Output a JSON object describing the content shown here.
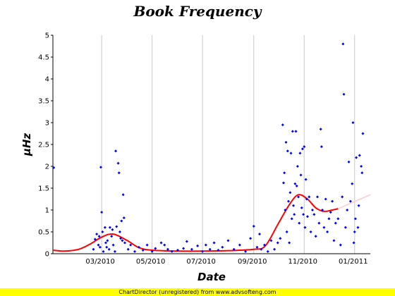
{
  "chart_data": {
    "type": "scatter",
    "title": "Book Frequency",
    "xlabel": "Date",
    "ylabel": "µHz",
    "x_ticks": [
      "03/2010",
      "05/2010",
      "07/2010",
      "09/2010",
      "11/2010",
      "01/2011"
    ],
    "xlim": [
      "2010-01-01",
      "2011-01-20"
    ],
    "y_ticks": [
      "0",
      "0.5",
      "1",
      "1.5",
      "2",
      "2.5",
      "3",
      "3.5",
      "4",
      "4.5",
      "5"
    ],
    "ylim": [
      0,
      5
    ],
    "grid": "vertical lines at x ticks",
    "series": [
      {
        "kind": "points",
        "color": "#0000ff",
        "points": [
          [
            "2010-01-02",
            1.97
          ],
          [
            "2010-02-19",
            0.1
          ],
          [
            "2010-02-21",
            0.33
          ],
          [
            "2010-02-23",
            0.45
          ],
          [
            "2010-02-25",
            0.2
          ],
          [
            "2010-02-26",
            0.4
          ],
          [
            "2010-02-27",
            0.15
          ],
          [
            "2010-02-28",
            1.98
          ],
          [
            "2010-03-01",
            0.95
          ],
          [
            "2010-03-02",
            0.5
          ],
          [
            "2010-03-03",
            0.05
          ],
          [
            "2010-03-05",
            0.6
          ],
          [
            "2010-03-06",
            0.25
          ],
          [
            "2010-03-07",
            0.15
          ],
          [
            "2010-03-08",
            0.3
          ],
          [
            "2010-03-10",
            0.1
          ],
          [
            "2010-03-11",
            0.6
          ],
          [
            "2010-03-13",
            0.4
          ],
          [
            "2010-03-14",
            0.55
          ],
          [
            "2010-03-15",
            0.2
          ],
          [
            "2010-03-17",
            0.05
          ],
          [
            "2010-03-18",
            2.35
          ],
          [
            "2010-03-19",
            0.62
          ],
          [
            "2010-03-21",
            2.07
          ],
          [
            "2010-03-22",
            1.85
          ],
          [
            "2010-03-23",
            0.5
          ],
          [
            "2010-03-24",
            0.35
          ],
          [
            "2010-03-25",
            0.75
          ],
          [
            "2010-03-26",
            0.3
          ],
          [
            "2010-03-27",
            1.35
          ],
          [
            "2010-03-28",
            0.82
          ],
          [
            "2010-03-29",
            0.25
          ],
          [
            "2010-04-02",
            0.1
          ],
          [
            "2010-04-05",
            0.2
          ],
          [
            "2010-04-10",
            0.05
          ],
          [
            "2010-04-15",
            0.15
          ],
          [
            "2010-04-20",
            0.08
          ],
          [
            "2010-04-25",
            0.2
          ],
          [
            "2010-05-01",
            0.05
          ],
          [
            "2010-05-05",
            0.12
          ],
          [
            "2010-05-12",
            0.25
          ],
          [
            "2010-05-16",
            0.2
          ],
          [
            "2010-05-20",
            0.1
          ],
          [
            "2010-05-25",
            0.05
          ],
          [
            "2010-06-01",
            0.08
          ],
          [
            "2010-06-08",
            0.12
          ],
          [
            "2010-06-12",
            0.28
          ],
          [
            "2010-06-18",
            0.1
          ],
          [
            "2010-06-25",
            0.18
          ],
          [
            "2010-07-01",
            0.05
          ],
          [
            "2010-07-05",
            0.2
          ],
          [
            "2010-07-10",
            0.1
          ],
          [
            "2010-07-15",
            0.25
          ],
          [
            "2010-07-20",
            0.08
          ],
          [
            "2010-07-25",
            0.15
          ],
          [
            "2010-08-01",
            0.3
          ],
          [
            "2010-08-08",
            0.1
          ],
          [
            "2010-08-15",
            0.2
          ],
          [
            "2010-08-22",
            0.05
          ],
          [
            "2010-08-28",
            0.35
          ],
          [
            "2010-09-01",
            0.63
          ],
          [
            "2010-09-05",
            0.15
          ],
          [
            "2010-09-08",
            0.45
          ],
          [
            "2010-09-10",
            0.1
          ],
          [
            "2010-09-14",
            0.2
          ],
          [
            "2010-09-18",
            0.05
          ],
          [
            "2010-09-22",
            0.3
          ],
          [
            "2010-09-26",
            0.1
          ],
          [
            "2010-09-30",
            0.25
          ],
          [
            "2010-10-03",
            0.35
          ],
          [
            "2010-10-06",
            2.95
          ],
          [
            "2010-10-07",
            1.62
          ],
          [
            "2010-10-08",
            1.85
          ],
          [
            "2010-10-09",
            1.0
          ],
          [
            "2010-10-10",
            2.55
          ],
          [
            "2010-10-11",
            0.5
          ],
          [
            "2010-10-12",
            2.35
          ],
          [
            "2010-10-13",
            1.2
          ],
          [
            "2010-10-14",
            0.25
          ],
          [
            "2010-10-15",
            1.4
          ],
          [
            "2010-10-16",
            2.3
          ],
          [
            "2010-10-17",
            0.8
          ],
          [
            "2010-10-18",
            2.8
          ],
          [
            "2010-10-19",
            1.1
          ],
          [
            "2010-10-20",
            0.9
          ],
          [
            "2010-10-21",
            1.6
          ],
          [
            "2010-10-22",
            2.8
          ],
          [
            "2010-10-23",
            1.55
          ],
          [
            "2010-10-24",
            2.0
          ],
          [
            "2010-10-25",
            1.3
          ],
          [
            "2010-10-26",
            0.7
          ],
          [
            "2010-10-27",
            2.3
          ],
          [
            "2010-10-28",
            1.8
          ],
          [
            "2010-10-29",
            1.05
          ],
          [
            "2010-10-30",
            2.4
          ],
          [
            "2010-10-31",
            0.9
          ],
          [
            "2010-11-01",
            2.45
          ],
          [
            "2010-11-02",
            0.6
          ],
          [
            "2010-11-03",
            1.7
          ],
          [
            "2010-11-04",
            1.25
          ],
          [
            "2010-11-05",
            0.85
          ],
          [
            "2010-11-07",
            1.3
          ],
          [
            "2010-11-09",
            0.5
          ],
          [
            "2010-11-11",
            1.0
          ],
          [
            "2010-11-13",
            0.9
          ],
          [
            "2010-11-15",
            0.4
          ],
          [
            "2010-11-17",
            1.3
          ],
          [
            "2010-11-19",
            0.7
          ],
          [
            "2010-11-21",
            2.85
          ],
          [
            "2010-11-22",
            2.45
          ],
          [
            "2010-11-23",
            1.0
          ],
          [
            "2010-11-25",
            0.6
          ],
          [
            "2010-11-27",
            1.25
          ],
          [
            "2010-11-29",
            0.5
          ],
          [
            "2010-12-01",
            0.8
          ],
          [
            "2010-12-03",
            0.95
          ],
          [
            "2010-12-05",
            1.2
          ],
          [
            "2010-12-07",
            0.3
          ],
          [
            "2010-12-09",
            0.7
          ],
          [
            "2010-12-12",
            0.8
          ],
          [
            "2010-12-15",
            0.2
          ],
          [
            "2010-12-17",
            1.3
          ],
          [
            "2010-12-18",
            4.8
          ],
          [
            "2010-12-19",
            3.65
          ],
          [
            "2010-12-21",
            0.6
          ],
          [
            "2010-12-23",
            1.0
          ],
          [
            "2010-12-25",
            2.1
          ],
          [
            "2010-12-27",
            1.2
          ],
          [
            "2010-12-29",
            1.6
          ],
          [
            "2010-12-30",
            3.0
          ],
          [
            "2010-12-31",
            0.25
          ],
          [
            "2011-01-01",
            0.5
          ],
          [
            "2011-01-02",
            0.8
          ],
          [
            "2011-01-03",
            2.2
          ],
          [
            "2011-01-05",
            0.6
          ],
          [
            "2011-01-06",
            1.1
          ],
          [
            "2011-01-07",
            2.25
          ],
          [
            "2011-01-09",
            2.0
          ],
          [
            "2011-01-10",
            1.85
          ],
          [
            "2011-01-11",
            2.75
          ]
        ]
      },
      {
        "kind": "smooth-line",
        "color": "#ff0000",
        "points": [
          [
            "2010-01-01",
            0.08
          ],
          [
            "2010-01-15",
            0.06
          ],
          [
            "2010-02-01",
            0.1
          ],
          [
            "2010-02-15",
            0.22
          ],
          [
            "2010-03-01",
            0.38
          ],
          [
            "2010-03-15",
            0.45
          ],
          [
            "2010-04-01",
            0.3
          ],
          [
            "2010-04-15",
            0.14
          ],
          [
            "2010-05-01",
            0.08
          ],
          [
            "2010-06-01",
            0.06
          ],
          [
            "2010-07-01",
            0.06
          ],
          [
            "2010-08-01",
            0.07
          ],
          [
            "2010-09-01",
            0.1
          ],
          [
            "2010-09-15",
            0.18
          ],
          [
            "2010-10-01",
            0.7
          ],
          [
            "2010-10-15",
            1.15
          ],
          [
            "2010-10-25",
            1.35
          ],
          [
            "2010-11-05",
            1.25
          ],
          [
            "2010-11-15",
            1.05
          ],
          [
            "2010-11-25",
            0.97
          ],
          [
            "2010-12-05",
            1.0
          ],
          [
            "2010-12-12",
            1.03
          ]
        ]
      },
      {
        "kind": "faded-line",
        "color": "#ffcccc",
        "points": [
          [
            "2010-12-12",
            1.03
          ],
          [
            "2011-01-20",
            1.35
          ]
        ]
      }
    ]
  },
  "footer": "ChartDirector (unregistered) from www.advsofteng.com"
}
